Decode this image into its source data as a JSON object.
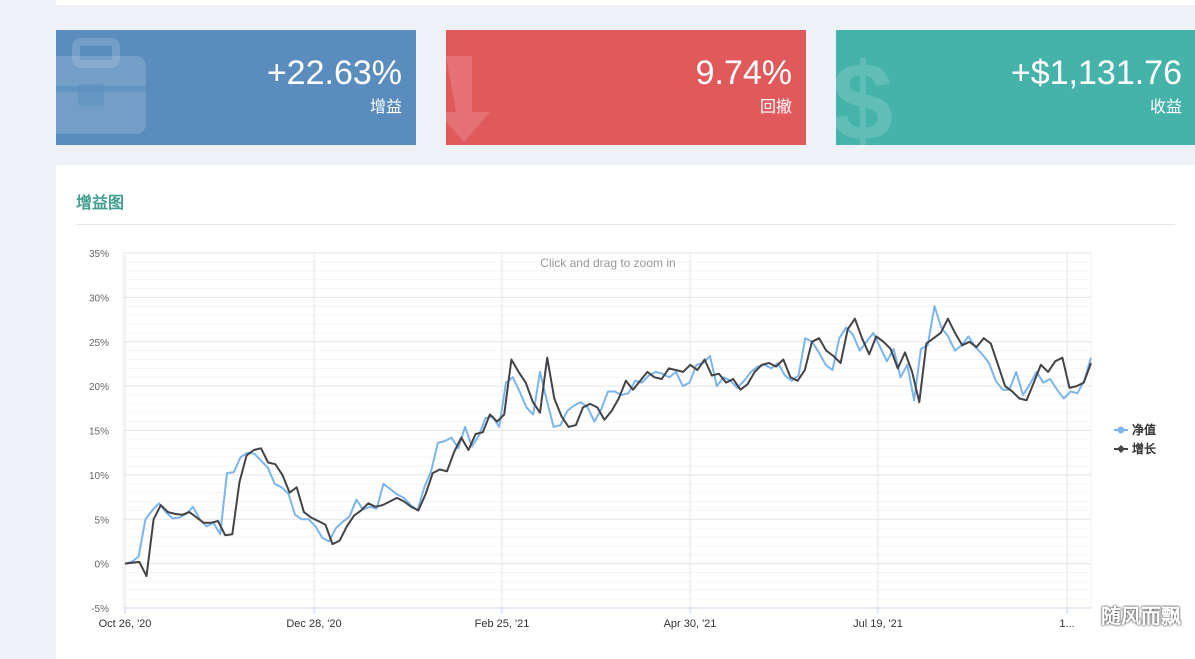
{
  "stats": [
    {
      "value": "+22.63%",
      "label": "增益",
      "icon": "briefcase-icon",
      "color": "#5a8dbe"
    },
    {
      "value": "9.74%",
      "label": "回撤",
      "icon": "arrow-down-icon",
      "color": "#e05a5c"
    },
    {
      "value": "+$1,131.76",
      "label": "收益",
      "icon": "dollar-icon",
      "color": "#46b3ab"
    }
  ],
  "panel": {
    "title": "增益图"
  },
  "watermark": "随风而飘",
  "chart_data": {
    "type": "line",
    "hint": "Click and drag to zoom in",
    "ylim": [
      -5,
      35
    ],
    "yticks": [
      "-5%",
      "0%",
      "5%",
      "10%",
      "15%",
      "20%",
      "25%",
      "30%",
      "35%"
    ],
    "xticks": [
      "Oct 26, '20",
      "Dec 28, '20",
      "Feb 25, '21",
      "Apr 30, '21",
      "Jul 19, '21",
      "1..."
    ],
    "legend_position": "right",
    "series": [
      {
        "name": "净值",
        "color": "#7cb5ec",
        "values": [
          0,
          0.2,
          0.8,
          5,
          6,
          6.8,
          5.8,
          5.1,
          5.2,
          5.6,
          6.4,
          5.0,
          4.2,
          4.6,
          3.3,
          10.2,
          10.3,
          12.0,
          12.5,
          12.4,
          11.6,
          10.8,
          9.0,
          8.6,
          7.9,
          5.5,
          5.0,
          5.0,
          4.2,
          2.9,
          2.5,
          4.0,
          4.7,
          5.3,
          7.2,
          6.1,
          6.4,
          6.2,
          9.0,
          8.4,
          7.8,
          7.4,
          6.6,
          6.0,
          8.6,
          10.4,
          13.6,
          13.8,
          14.2,
          13.0,
          15.4,
          13.2,
          14.4,
          16.4,
          16.6,
          15.4,
          20.4,
          21.0,
          19.4,
          17.6,
          16.8,
          21.6,
          18.4,
          15.4,
          15.6,
          17.2,
          17.8,
          18.2,
          17.6,
          16.0,
          17.4,
          19.4,
          19.4,
          19.0,
          19.2,
          20.6,
          20.4,
          21.2,
          21.6,
          21.4,
          21.0,
          21.6,
          20.0,
          20.4,
          22.4,
          22.6,
          23.4,
          20.0,
          21.0,
          20.6,
          19.8,
          20.6,
          21.6,
          22.2,
          22.4,
          22.0,
          22.6,
          21.2,
          20.6,
          21.2,
          25.4,
          25.0,
          23.8,
          22.4,
          21.8,
          25.4,
          26.6,
          25.8,
          24.0,
          25.0,
          26.0,
          24.4,
          22.8,
          24.2,
          21.0,
          22.4,
          18.4,
          24.2,
          24.6,
          29.0,
          26.6,
          25.6,
          24.0,
          24.6,
          25.6,
          24.4,
          23.6,
          22.6,
          20.6,
          19.6,
          19.6,
          21.6,
          19.0,
          20.2,
          21.6,
          20.4,
          20.8,
          19.6,
          18.6,
          19.4,
          19.2,
          20.6,
          23.2
        ]
      },
      {
        "name": "增长",
        "color": "#434348",
        "values": [
          0,
          0.1,
          0.2,
          -1.4,
          5,
          6.6,
          5.8,
          5.6,
          5.5,
          5.8,
          5.2,
          4.6,
          4.6,
          4.8,
          3.2,
          3.3,
          9.2,
          12.2,
          12.8,
          13.0,
          11.4,
          11.2,
          10.0,
          8.0,
          8.6,
          5.8,
          5.2,
          4.8,
          4.4,
          2.2,
          2.6,
          4.2,
          5.4,
          6.0,
          6.8,
          6.4,
          6.6,
          7.0,
          7.4,
          7.0,
          6.4,
          6.0,
          7.8,
          10.2,
          10.6,
          10.4,
          12.6,
          14.2,
          12.8,
          14.6,
          14.8,
          16.8,
          16.0,
          16.8,
          23.0,
          21.6,
          20.4,
          18.2,
          17.0,
          23.2,
          18.6,
          16.6,
          15.4,
          15.6,
          17.6,
          18.0,
          17.6,
          16.2,
          17.2,
          18.6,
          20.6,
          19.6,
          20.6,
          21.6,
          21.0,
          20.8,
          22.0,
          21.8,
          21.6,
          22.4,
          21.8,
          23.0,
          21.2,
          21.4,
          20.4,
          20.8,
          19.6,
          20.2,
          21.6,
          22.4,
          22.6,
          22.2,
          23.0,
          21.0,
          20.6,
          21.8,
          25.0,
          25.4,
          24.0,
          23.4,
          22.6,
          26.4,
          27.6,
          25.4,
          23.6,
          25.6,
          25.0,
          24.2,
          22.0,
          23.8,
          21.6,
          18.2,
          24.8,
          25.4,
          26.0,
          27.6,
          26.0,
          24.6,
          25.0,
          24.4,
          25.4,
          24.8,
          22.4,
          20.0,
          19.4,
          18.6,
          18.4,
          20.4,
          22.4,
          21.6,
          22.8,
          23.2,
          19.8,
          20.0,
          20.4,
          22.6
        ]
      }
    ]
  }
}
